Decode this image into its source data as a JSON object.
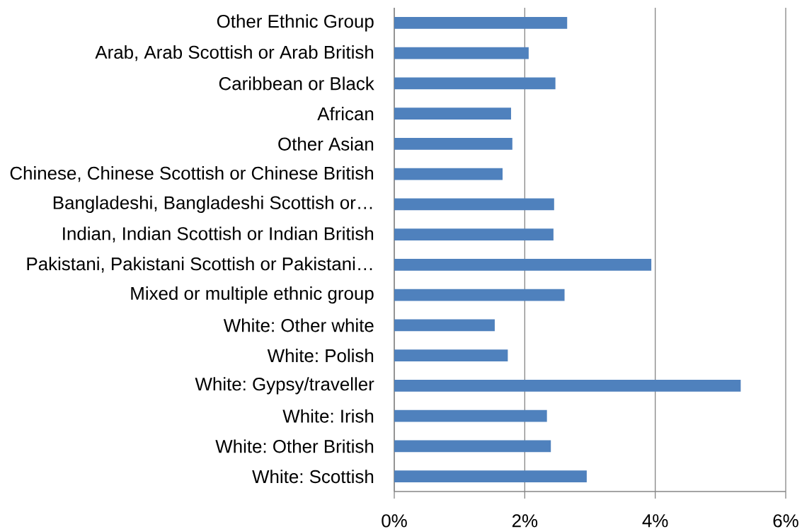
{
  "chart_data": {
    "type": "bar",
    "orientation": "horizontal",
    "categories": [
      "Other Ethnic Group",
      "Arab, Arab Scottish or Arab British",
      "Caribbean or Black",
      "African",
      "Other Asian",
      "Chinese, Chinese Scottish or Chinese British",
      "Bangladeshi, Bangladeshi Scottish or…",
      "Indian, Indian Scottish or Indian British",
      "Pakistani, Pakistani Scottish or Pakistani…",
      "Mixed or multiple ethnic group",
      "White: Other white",
      "White: Polish",
      "White: Gypsy/traveller",
      "White: Irish",
      "White: Other British",
      "White: Scottish"
    ],
    "values": [
      2.65,
      2.06,
      2.47,
      1.79,
      1.81,
      1.66,
      2.45,
      2.44,
      3.94,
      2.61,
      1.54,
      1.74,
      5.31,
      2.34,
      2.4,
      2.95
    ],
    "color": "#4f81bd",
    "xlim": [
      0,
      6
    ],
    "xticks": [
      {
        "value": 0,
        "label": "0%"
      },
      {
        "value": 2,
        "label": "2%"
      },
      {
        "value": 4,
        "label": "4%"
      },
      {
        "value": 6,
        "label": "6%"
      }
    ],
    "grid": "x"
  }
}
